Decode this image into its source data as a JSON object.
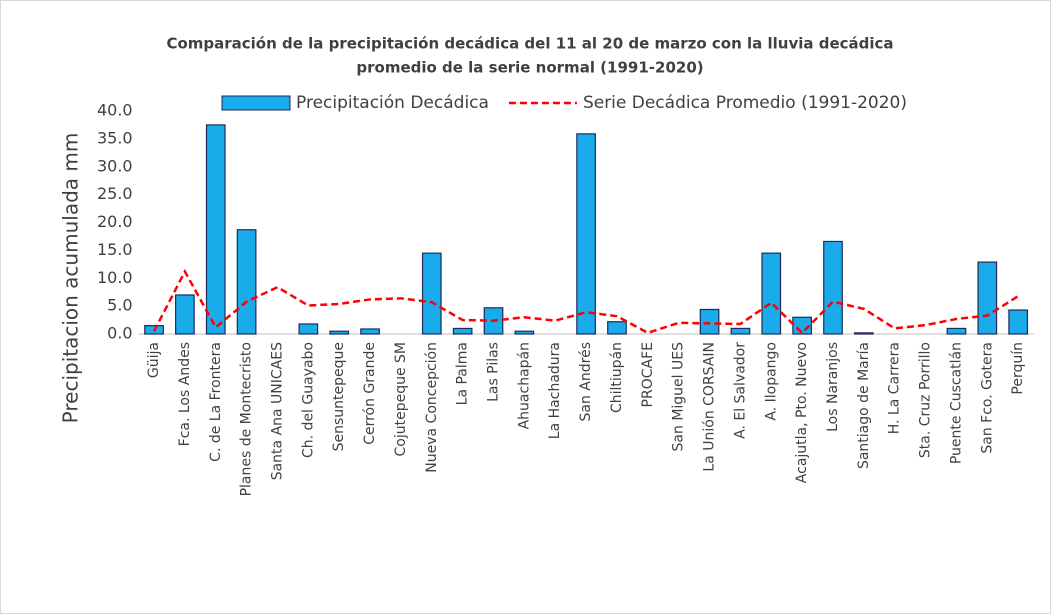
{
  "chart_data": {
    "type": "bar+line",
    "title": [
      "Comparación de la precipitación decádica del 11 al 20 de marzo con la lluvia decádica",
      "promedio de la serie normal (1991-2020)"
    ],
    "ylabel": "Precipitacion acumulada mm",
    "categories": [
      "Güija",
      "Fca. Los Andes",
      "C. de La Frontera",
      "Planes de Montecristo",
      "Santa Ana UNICAES",
      "Ch. del Guayabo",
      "Sensuntepeque",
      "Cerrón Grande",
      "Cojutepeque SM",
      "Nueva Concepción",
      "La Palma",
      "Las Pilas",
      "Ahuachapán",
      "La Hachadura",
      "San Andrés",
      "Chiltiupán",
      "PROCAFE",
      "San Miguel UES",
      "La Unión CORSAIN",
      "A. El Salvador",
      "A. Ilopango",
      "Acajutla, Pto. Nuevo",
      "Los Naranjos",
      "Santiago de María",
      "H. La Carrera",
      "Sta. Cruz Porrillo",
      "Puente Cuscatlán",
      "San Fco. Gotera",
      "Perquín"
    ],
    "series": [
      {
        "name": "Precipitación Decádica",
        "type": "bar",
        "color": "#1aabea",
        "values": [
          1.5,
          7.0,
          37.5,
          18.7,
          0,
          1.8,
          0.5,
          0.9,
          0,
          14.5,
          1.0,
          4.7,
          0.5,
          0,
          35.9,
          2.2,
          0,
          0,
          4.4,
          1.0,
          14.5,
          3.0,
          16.6,
          0.2,
          0,
          0,
          1.0,
          12.9,
          4.3
        ]
      },
      {
        "name": "Serie Decádica Promedio (1991-2020)",
        "type": "line",
        "color": "#ff0000",
        "values": [
          0.5,
          11.2,
          1.2,
          5.8,
          8.4,
          5.1,
          5.4,
          6.2,
          6.4,
          5.7,
          2.5,
          2.4,
          3.0,
          2.4,
          3.9,
          3.2,
          0.2,
          2.0,
          1.9,
          1.8,
          5.6,
          0.2,
          5.8,
          4.5,
          1.0,
          1.6,
          2.7,
          3.3,
          6.8
        ]
      }
    ],
    "ylim": [
      0,
      40
    ],
    "yticks": [
      {
        "value": 0,
        "label": "0.0"
      },
      {
        "value": 5,
        "label": "5.0"
      },
      {
        "value": 10,
        "label": "10.0"
      },
      {
        "value": 15,
        "label": "15.0"
      },
      {
        "value": 20,
        "label": "20.0"
      },
      {
        "value": 25,
        "label": "25.0"
      },
      {
        "value": 30,
        "label": "30.0"
      },
      {
        "value": 35,
        "label": "35.0"
      },
      {
        "value": 40,
        "label": "40.0"
      }
    ],
    "legend": "top"
  }
}
